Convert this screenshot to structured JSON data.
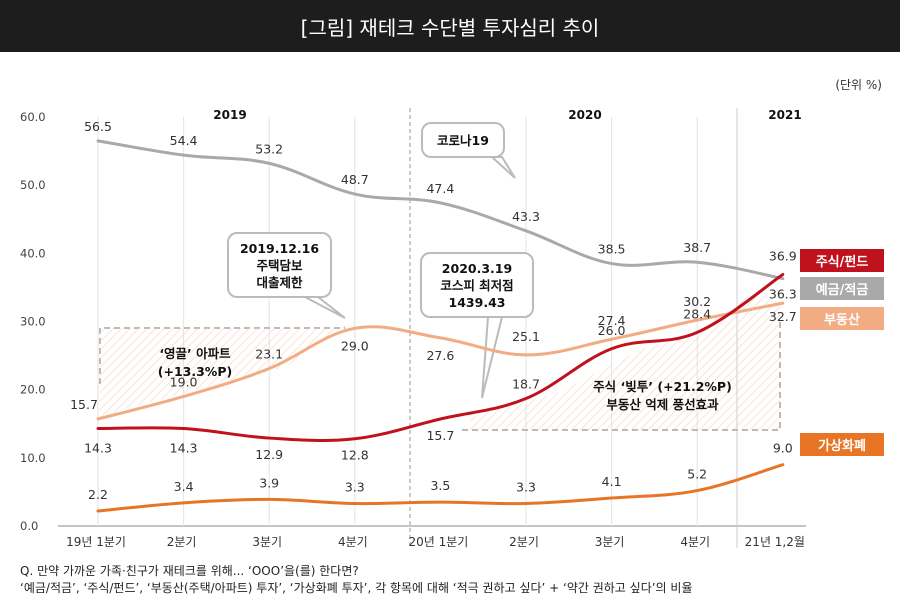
{
  "title": "[그림] 재테크 수단별 투자심리 추이",
  "unit": "(단위 %)",
  "footnote": {
    "line1": "Q. 만약 가까운 가족·친구가 재테크를 위해... ‘OOO’을(를) 한다면?",
    "line2": "‘예금/적금’, ‘주식/펀드’, ‘부동산(주택/아파트) 투자’, ‘가상화폐 투자’, 각 항목에 대해 ‘적극 권하고 싶다’ + ‘약간 권하고 싶다’의 비율"
  },
  "year_labels": [
    "2019",
    "2020",
    "2021"
  ],
  "callouts": {
    "corona": "코로나19",
    "loan": [
      "2019.12.16",
      "주택담보",
      "대출제한"
    ],
    "kospi": [
      "2020.3.19",
      "코스피 최저점",
      "1439.43"
    ]
  },
  "annotations": {
    "apartment": [
      "‘영끌’ 아파트",
      "(+13.3%P)"
    ],
    "debt": [
      "주식 ‘빚투’ (+21.2%P)",
      "부동산 억제 풍선효과"
    ]
  },
  "chart_data": {
    "type": "line",
    "categories": [
      "19년 1분기",
      "2분기",
      "3분기",
      "4분기",
      "20년 1분기",
      "2분기",
      "3분기",
      "4분기",
      "21년 1,2월"
    ],
    "y_ticks": [
      "0.0",
      "10.0",
      "20.0",
      "30.0",
      "40.0",
      "50.0",
      "60.0"
    ],
    "ylim": [
      0,
      60
    ],
    "grid": "vertical",
    "legend_position": "right",
    "series": [
      {
        "name": "주식/펀드",
        "color": "#c0121c",
        "values": [
          14.3,
          14.3,
          12.9,
          12.8,
          15.7,
          18.7,
          26.0,
          28.4,
          36.9
        ],
        "labels": [
          "14.3",
          "14.3",
          "12.9",
          "12.8",
          "15.7",
          "18.7",
          "26.0",
          "28.4",
          "36.9"
        ]
      },
      {
        "name": "예금/적금",
        "color": "#a9a9a9",
        "values": [
          56.5,
          54.4,
          53.2,
          48.7,
          47.4,
          43.3,
          38.5,
          38.7,
          36.3
        ],
        "labels": [
          "56.5",
          "54.4",
          "53.2",
          "48.7",
          "47.4",
          "43.3",
          "38.5",
          "38.7",
          "36.3"
        ]
      },
      {
        "name": "부동산",
        "color": "#f2ac83",
        "values": [
          15.7,
          19.0,
          23.1,
          29.0,
          27.6,
          25.1,
          27.4,
          30.2,
          32.7
        ],
        "labels": [
          "15.7",
          "19.0",
          "23.1",
          "29.0",
          "27.6",
          "25.1",
          "27.4",
          "30.2",
          "32.7"
        ]
      },
      {
        "name": "가상화폐",
        "color": "#e87525",
        "values": [
          2.2,
          3.4,
          3.9,
          3.3,
          3.5,
          3.3,
          4.1,
          5.2,
          9.0
        ],
        "labels": [
          "2.2",
          "3.4",
          "3.9",
          "3.3",
          "3.5",
          "3.3",
          "4.1",
          "5.2",
          "9.0"
        ]
      }
    ]
  }
}
